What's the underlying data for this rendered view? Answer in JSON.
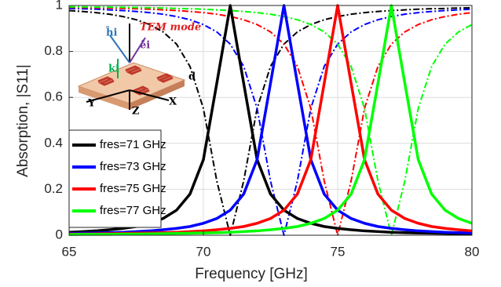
{
  "chart_data": {
    "type": "line",
    "xlabel": "Frequency [GHz]",
    "ylabel": "Absorption, |S11|",
    "x": [
      65,
      65.5,
      66,
      66.5,
      67,
      67.5,
      68,
      68.5,
      69,
      69.5,
      70,
      70.5,
      71,
      71.5,
      72,
      72.5,
      73,
      73.5,
      74,
      74.5,
      75,
      75.5,
      76,
      76.5,
      77,
      77.5,
      78,
      78.5,
      79,
      79.5,
      80
    ],
    "xlim": [
      65,
      80
    ],
    "xticks": [
      65,
      70,
      75,
      80
    ],
    "ylim": [
      0,
      1
    ],
    "yticks": [
      0,
      0.2,
      0.4,
      0.6,
      0.8,
      1
    ],
    "grid": true,
    "legend_position": "lower left",
    "annotations": [
      "TEM mode",
      "ĥi",
      "êi",
      "ki",
      "d",
      "X",
      "Y",
      "Z"
    ],
    "series": [
      {
        "name": "fres=71 GHz",
        "color": "#000000",
        "style": "solid",
        "values": [
          0.013,
          0.016,
          0.019,
          0.024,
          0.03,
          0.038,
          0.052,
          0.073,
          0.109,
          0.179,
          0.329,
          0.662,
          1,
          0.662,
          0.329,
          0.179,
          0.109,
          0.073,
          0.052,
          0.038,
          0.03,
          0.024,
          0.019,
          0.016,
          0.013,
          0.011,
          0.01,
          0.009,
          0.008,
          0.007,
          0.006
        ]
      },
      {
        "name": "fres=73 GHz",
        "color": "#0000ff",
        "style": "solid",
        "values": [
          0.008,
          0.009,
          0.01,
          0.011,
          0.013,
          0.016,
          0.019,
          0.024,
          0.03,
          0.038,
          0.052,
          0.073,
          0.109,
          0.179,
          0.329,
          0.662,
          1,
          0.662,
          0.329,
          0.179,
          0.109,
          0.073,
          0.052,
          0.038,
          0.03,
          0.024,
          0.019,
          0.016,
          0.013,
          0.011,
          0.01
        ]
      },
      {
        "name": "fres=75 GHz",
        "color": "#ff0000",
        "style": "solid",
        "values": [
          0.005,
          0.005,
          0.006,
          0.007,
          0.008,
          0.009,
          0.01,
          0.011,
          0.013,
          0.016,
          0.019,
          0.024,
          0.03,
          0.038,
          0.052,
          0.073,
          0.109,
          0.179,
          0.329,
          0.662,
          1,
          0.662,
          0.329,
          0.179,
          0.109,
          0.073,
          0.052,
          0.038,
          0.03,
          0.024,
          0.019
        ]
      },
      {
        "name": "fres=77 GHz",
        "color": "#00ff00",
        "style": "solid",
        "values": [
          0.003,
          0.004,
          0.004,
          0.004,
          0.005,
          0.005,
          0.006,
          0.007,
          0.008,
          0.009,
          0.01,
          0.011,
          0.013,
          0.016,
          0.019,
          0.024,
          0.03,
          0.038,
          0.052,
          0.073,
          0.109,
          0.179,
          0.329,
          0.662,
          1,
          0.662,
          0.329,
          0.179,
          0.109,
          0.073,
          0.052
        ]
      },
      {
        "color": "#000000",
        "style": "dashdot",
        "values": [
          0.978,
          0.974,
          0.969,
          0.962,
          0.952,
          0.938,
          0.917,
          0.885,
          0.832,
          0.735,
          0.552,
          0.236,
          0,
          0.236,
          0.552,
          0.735,
          0.832,
          0.885,
          0.917,
          0.938,
          0.952,
          0.962,
          0.969,
          0.974,
          0.978,
          0.981,
          0.984,
          0.986,
          0.987,
          0.989,
          0.99
        ]
      },
      {
        "color": "#0000ff",
        "style": "dashdot",
        "values": [
          0.987,
          0.986,
          0.984,
          0.981,
          0.978,
          0.974,
          0.969,
          0.962,
          0.952,
          0.938,
          0.917,
          0.885,
          0.832,
          0.735,
          0.552,
          0.236,
          0,
          0.236,
          0.552,
          0.735,
          0.832,
          0.885,
          0.917,
          0.938,
          0.952,
          0.962,
          0.969,
          0.974,
          0.978,
          0.981,
          0.984
        ]
      },
      {
        "color": "#ff0000",
        "style": "dashdot",
        "values": [
          0.992,
          0.991,
          0.99,
          0.989,
          0.987,
          0.986,
          0.984,
          0.981,
          0.978,
          0.974,
          0.969,
          0.962,
          0.952,
          0.938,
          0.917,
          0.885,
          0.832,
          0.735,
          0.552,
          0.236,
          0,
          0.236,
          0.552,
          0.735,
          0.832,
          0.885,
          0.917,
          0.938,
          0.952,
          0.962,
          0.969
        ]
      },
      {
        "color": "#00ff00",
        "style": "dashdot",
        "values": [
          0.994,
          0.994,
          0.993,
          0.993,
          0.992,
          0.991,
          0.99,
          0.989,
          0.987,
          0.986,
          0.984,
          0.981,
          0.978,
          0.974,
          0.969,
          0.962,
          0.952,
          0.938,
          0.917,
          0.885,
          0.832,
          0.735,
          0.552,
          0.236,
          0,
          0.236,
          0.552,
          0.735,
          0.832,
          0.885,
          0.917
        ]
      }
    ]
  }
}
